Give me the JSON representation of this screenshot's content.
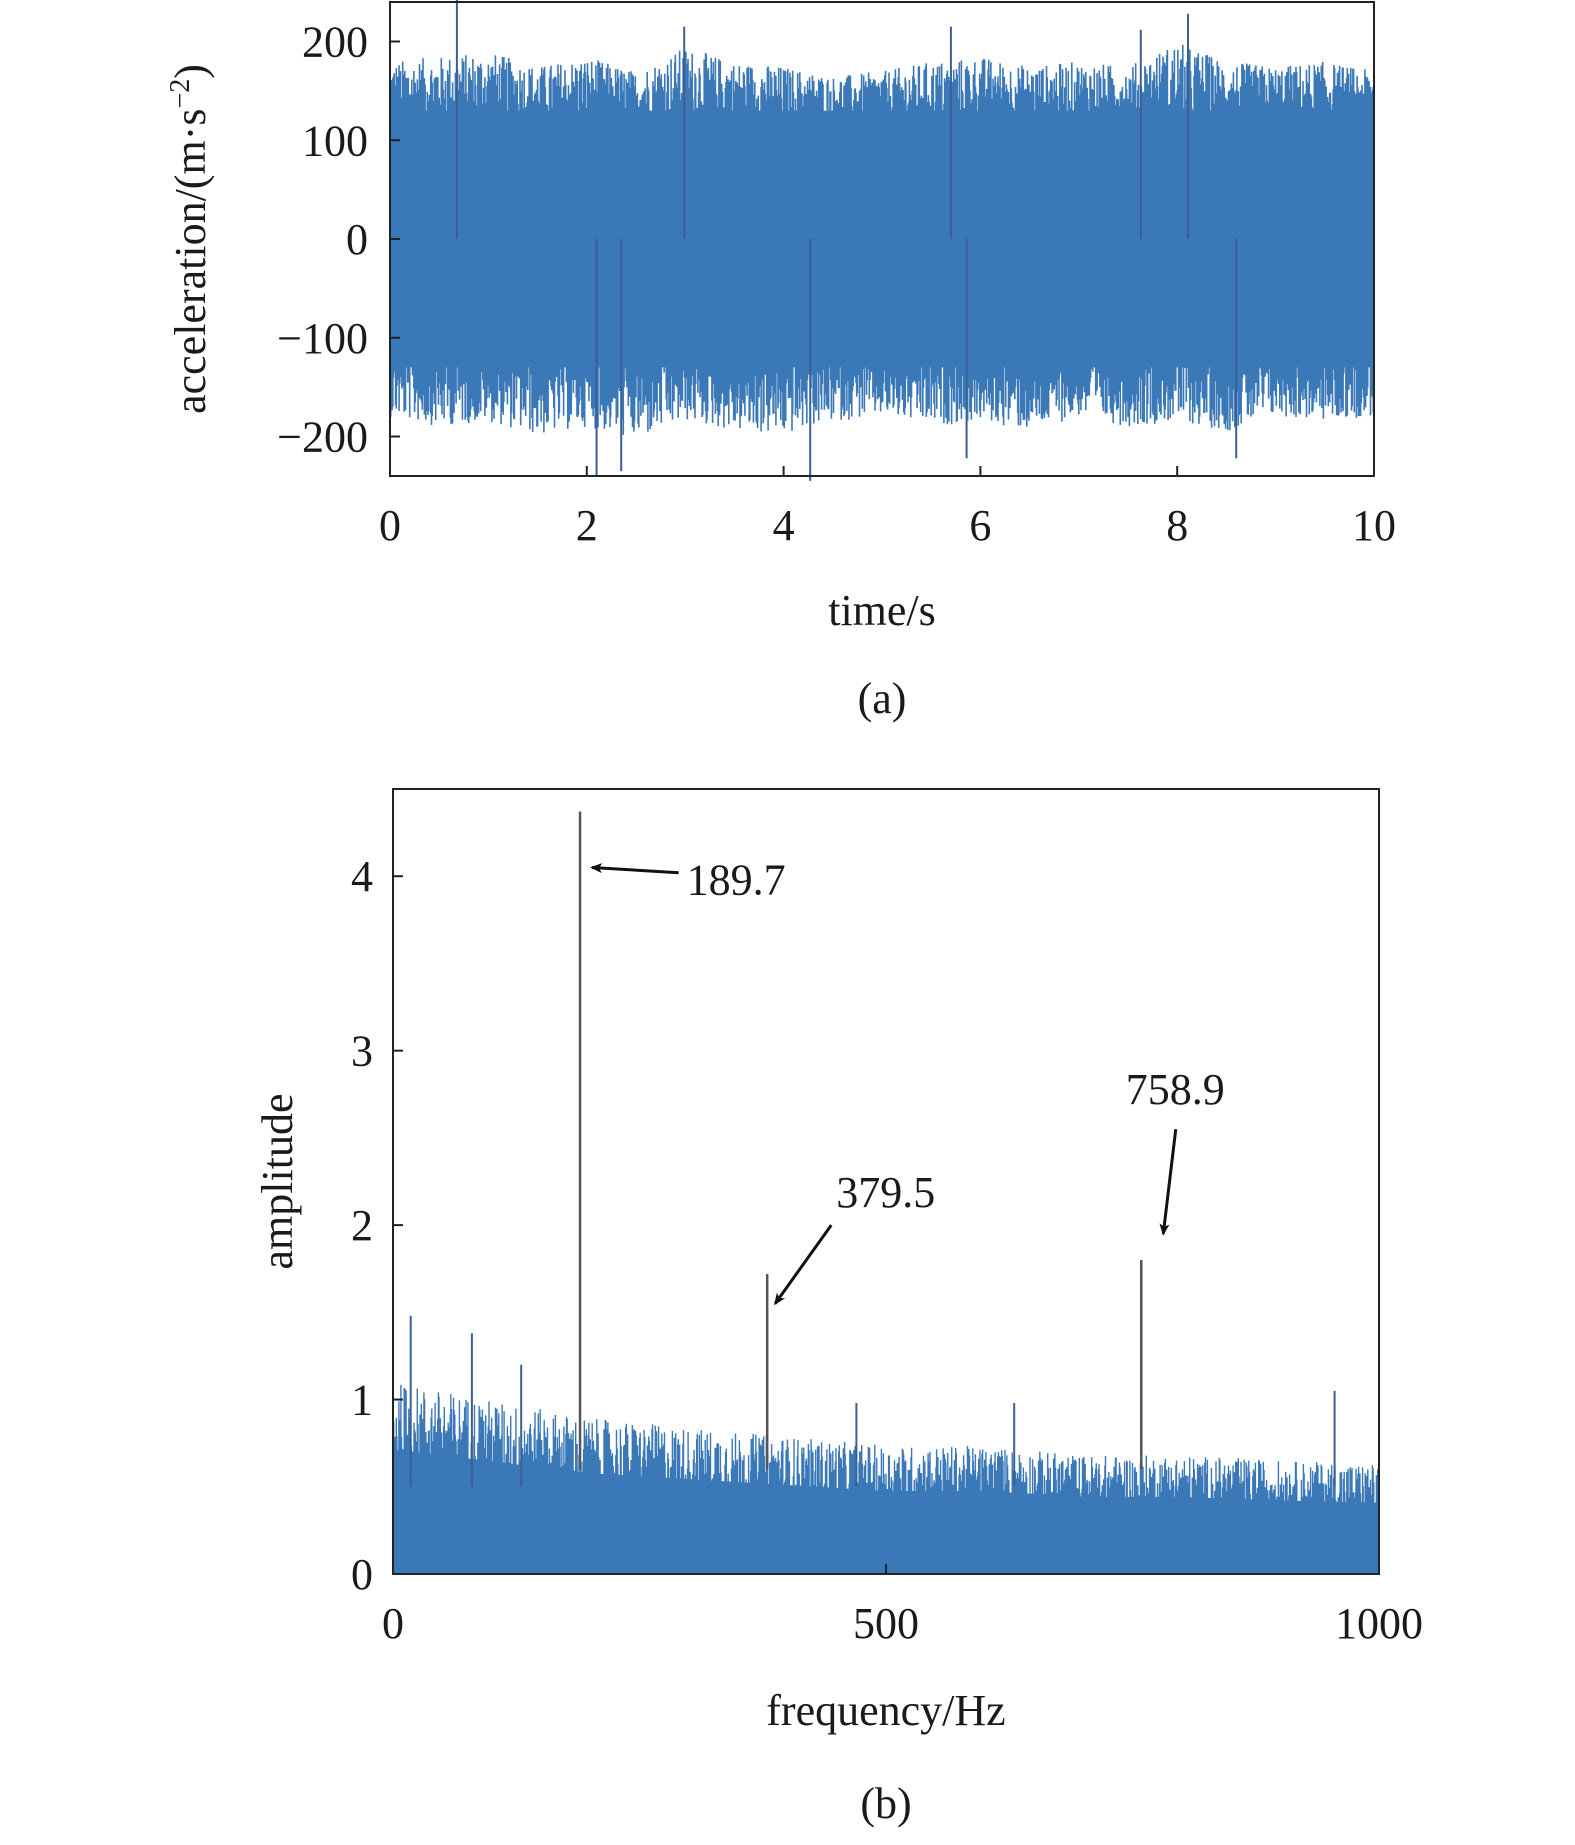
{
  "chart_data": [
    {
      "type": "line",
      "panel_label": "(a)",
      "xlabel": "time/s",
      "ylabel_main": "acceleration/(m·s",
      "ylabel_sup": "−2",
      "ylabel_close": ")",
      "xlim": [
        0,
        10
      ],
      "ylim": [
        -240,
        240
      ],
      "xticks": [
        0,
        2,
        4,
        6,
        8,
        10
      ],
      "xtick_labels": [
        "0",
        "2",
        "4",
        "6",
        "8",
        "10"
      ],
      "yticks": [
        200,
        100,
        0,
        -100,
        -200
      ],
      "ytick_labels": [
        "200",
        "100",
        "0",
        "−100",
        "−200"
      ],
      "series": [
        {
          "color": "#3a78b8",
          "description_values": "dense vibration signal filling approx ±130 m·s^-2 with peaks to about ±200–240",
          "envelope": {
            "x": [
              0,
              0.5,
              1,
              1.5,
              2,
              2.5,
              3,
              3.5,
              4,
              4.5,
              5,
              5.5,
              6,
              6.5,
              7,
              7.5,
              8,
              8.5,
              9,
              9.5,
              10
            ],
            "upper": [
              180,
              185,
              190,
              175,
              185,
              170,
              195,
              180,
              175,
              165,
              170,
              180,
              185,
              175,
              180,
              175,
              200,
              180,
              175,
              180,
              170
            ],
            "lower": [
              -180,
              -190,
              -185,
              -200,
              -190,
              -205,
              -185,
              -195,
              -200,
              -185,
              -180,
              -190,
              -185,
              -195,
              -180,
              -190,
              -185,
              -195,
              -180,
              -185,
              -180
            ]
          },
          "spikes": [
            {
              "x": 0.68,
              "y": 245
            },
            {
              "x": 2.99,
              "y": 215
            },
            {
              "x": 5.7,
              "y": 215
            },
            {
              "x": 8.11,
              "y": 228
            },
            {
              "x": 7.63,
              "y": 212
            },
            {
              "x": 2.1,
              "y": -240
            },
            {
              "x": 4.27,
              "y": -245
            },
            {
              "x": 2.35,
              "y": -235
            },
            {
              "x": 5.86,
              "y": -222
            },
            {
              "x": 8.6,
              "y": -222
            }
          ]
        }
      ]
    },
    {
      "type": "line",
      "panel_label": "(b)",
      "xlabel": "frequency/Hz",
      "ylabel": "amplitude",
      "xlim": [
        0,
        1000
      ],
      "ylim": [
        0,
        4.5
      ],
      "xticks": [
        0,
        500,
        1000
      ],
      "xtick_labels": [
        "0",
        "500",
        "1000"
      ],
      "yticks": [
        0,
        1,
        2,
        3,
        4
      ],
      "ytick_labels": [
        "0",
        "1",
        "2",
        "3",
        "4"
      ],
      "series": [
        {
          "color": "#3a78b8",
          "description_values": "noise floor decaying from about 1.0 at 0 Hz to about 0.6 at 1000 Hz",
          "floor": {
            "x": [
              0,
              100,
              200,
              300,
              400,
              500,
              600,
              700,
              800,
              900,
              1000
            ],
            "upper": [
              1.05,
              0.95,
              0.85,
              0.8,
              0.75,
              0.7,
              0.7,
              0.65,
              0.65,
              0.62,
              0.6
            ]
          },
          "minor_peaks": [
            {
              "x": 18,
              "y": 1.48
            },
            {
              "x": 80,
              "y": 1.38
            },
            {
              "x": 130,
              "y": 1.2
            },
            {
              "x": 470,
              "y": 0.98
            },
            {
              "x": 630,
              "y": 0.98
            },
            {
              "x": 955,
              "y": 1.05
            }
          ]
        }
      ],
      "peaks": [
        {
          "x": 189.7,
          "y": 4.37,
          "label": "189.7"
        },
        {
          "x": 379.5,
          "y": 1.72,
          "label": "379.5"
        },
        {
          "x": 758.9,
          "y": 1.8,
          "label": "758.9"
        }
      ],
      "peak_color": "#555555"
    }
  ]
}
